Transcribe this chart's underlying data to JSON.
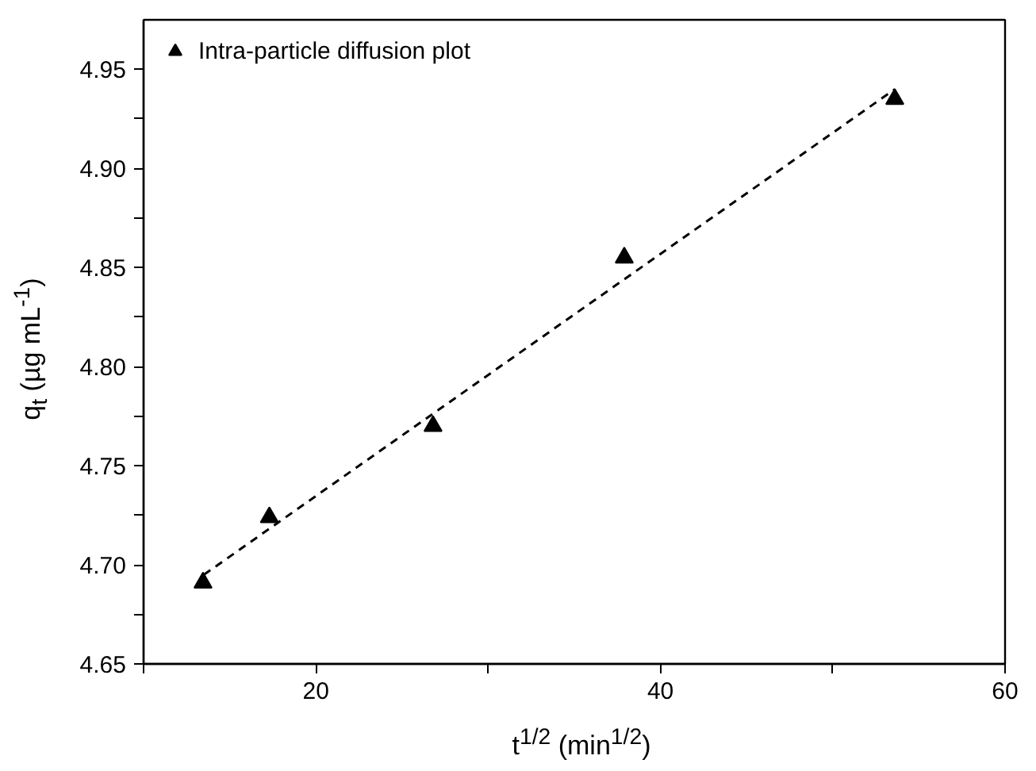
{
  "chart_data": {
    "type": "scatter",
    "xlabel": "t$^{1/2}$ (min$^{1/2}$)",
    "ylabel": "q$_{t}$ (µg mL$^{-1}$)",
    "xlim": [
      10,
      60
    ],
    "xticks": [
      {
        "value": 10,
        "label": null
      },
      20,
      {
        "value": 30,
        "label": null
      },
      40,
      {
        "value": 50,
        "label": null
      },
      60
    ],
    "ylim": [
      4.65,
      4.975
    ],
    "yticks": [
      4.65,
      {
        "value": 4.7,
        "label": "4.70"
      },
      4.75,
      {
        "value": 4.8,
        "label": "4.80"
      },
      4.85,
      {
        "value": 4.9,
        "label": "4.90"
      },
      4.95,
      {
        "value": 4.675,
        "label": null
      },
      {
        "value": 4.725,
        "label": null
      },
      {
        "value": 4.775,
        "label": null
      },
      {
        "value": 4.825,
        "label": null
      },
      {
        "value": 4.875,
        "label": null
      },
      {
        "value": 4.925,
        "label": null
      }
    ],
    "grid": false,
    "legend": "top left",
    "marker": "triangle",
    "series": [
      {
        "name": "Intra-particle diffusion plot",
        "type": "scatter",
        "color": "#000000",
        "x": [
          13.45,
          17.3,
          26.8,
          37.9,
          53.6
        ],
        "values": [
          4.691,
          4.724,
          4.77,
          4.855,
          4.935
        ]
      },
      {
        "type": "line",
        "color": "#000000",
        "line_style": "dashed",
        "marker": "none",
        "x": [
          13.5,
          53.6
        ],
        "values": [
          4.695,
          4.94
        ]
      }
    ]
  }
}
